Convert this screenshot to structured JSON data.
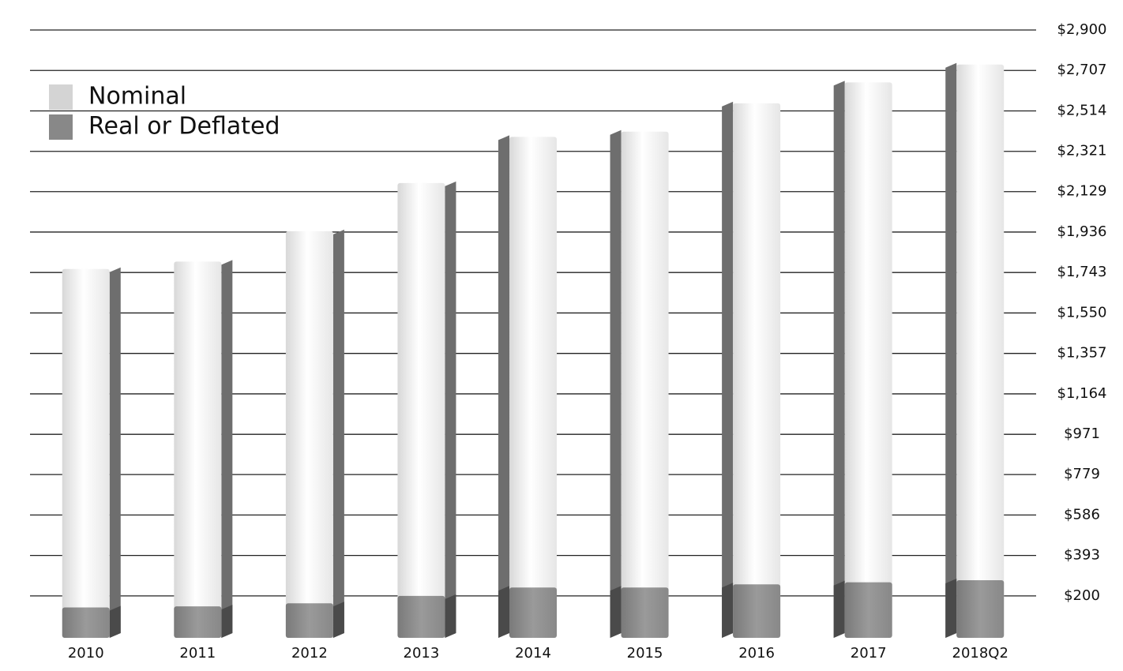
{
  "chart_data": {
    "type": "bar",
    "categories": [
      "2010",
      "2011",
      "2012",
      "2013",
      "2014",
      "2015",
      "2016",
      "2017",
      "2018Q2"
    ],
    "series": [
      {
        "name": "Nominal",
        "color": "#d4d4d4",
        "values": [
          1760,
          1795,
          1940,
          2170,
          2390,
          2415,
          2550,
          2650,
          2735
        ]
      },
      {
        "name": "Real or Deflated",
        "color": "#888888",
        "values": [
          145,
          150,
          165,
          200,
          240,
          240,
          255,
          265,
          275
        ]
      }
    ],
    "ylim": [
      0,
      2900
    ],
    "yticks": [
      {
        "value": 200,
        "label": "$200"
      },
      {
        "value": 393,
        "label": "$393"
      },
      {
        "value": 586,
        "label": "$586"
      },
      {
        "value": 779,
        "label": "$779"
      },
      {
        "value": 971,
        "label": "$971"
      },
      {
        "value": 1164,
        "label": "$1,164"
      },
      {
        "value": 1357,
        "label": "$1,357"
      },
      {
        "value": 1550,
        "label": "$1,550"
      },
      {
        "value": 1743,
        "label": "$1,743"
      },
      {
        "value": 1936,
        "label": "$1,936"
      },
      {
        "value": 2129,
        "label": "$2,129"
      },
      {
        "value": 2321,
        "label": "$2,321"
      },
      {
        "value": 2514,
        "label": "$2,514"
      },
      {
        "value": 2707,
        "label": "$2,707"
      },
      {
        "value": 2900,
        "label": "$2,900"
      }
    ],
    "grid": true,
    "legend": "top-left"
  }
}
